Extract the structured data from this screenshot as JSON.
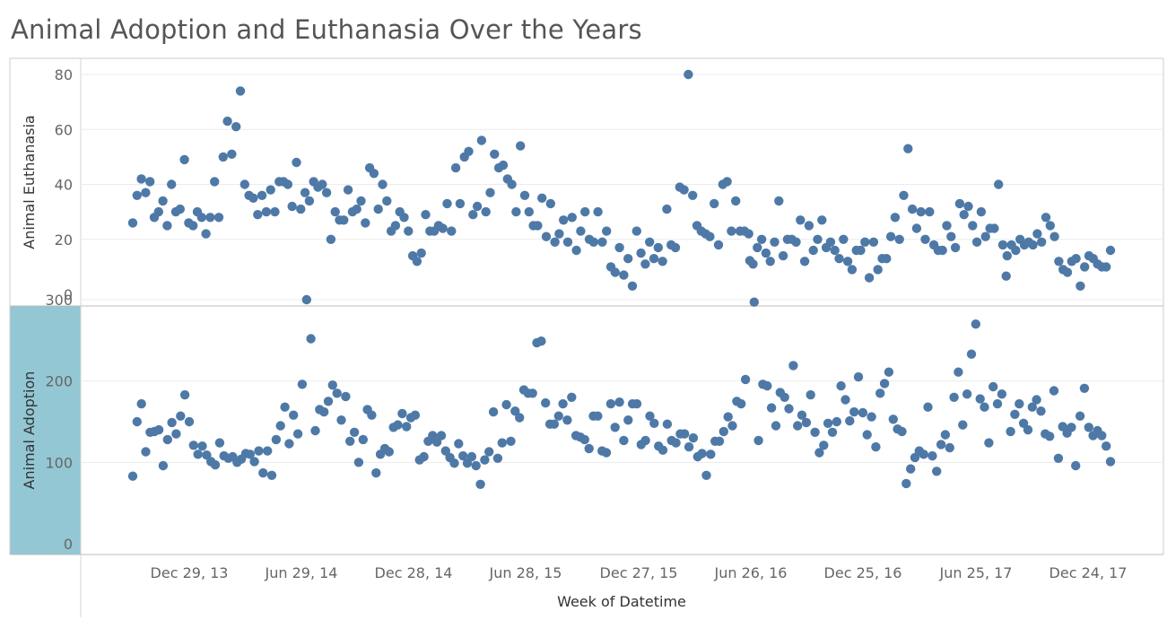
{
  "title": "Animal Adoption and Euthanasia Over the Years",
  "colors": {
    "mark": "#4e79a7",
    "highlight_band": "#93c7d4",
    "grid": "#ececec",
    "border": "#cccccc"
  },
  "chart_data": {
    "type": "scatter",
    "title": "Animal Adoption and Euthanasia Over the Years",
    "xlabel": "Week of Datetime",
    "x_ticks": [
      "Dec 29, 13",
      "Jun 29, 14",
      "Dec 28, 14",
      "Jun 28, 15",
      "Dec 27, 15",
      "Jun 26, 16",
      "Dec 25, 16",
      "Jun 25, 17",
      "Dec 24, 17"
    ],
    "x_range": [
      "Jul 28, 2013",
      "Apr 2, 2018"
    ],
    "panels": [
      {
        "name": "Animal Euthanasia",
        "ylabel": "Animal Euthanasia",
        "ylim": [
          0,
          80
        ],
        "yticks": [
          "0",
          "20",
          "40",
          "60",
          "80"
        ],
        "values": [
          26,
          36,
          42,
          37,
          41,
          28,
          30,
          34,
          25,
          40,
          30,
          31,
          49,
          26,
          25,
          30,
          28,
          22,
          28,
          41,
          28,
          50,
          63,
          51,
          61,
          74,
          40,
          36,
          35,
          29,
          36,
          30,
          38,
          30,
          41,
          41,
          40,
          32,
          48,
          31,
          37,
          34,
          41,
          39,
          40,
          37,
          20,
          30,
          27,
          27,
          38,
          30,
          31,
          34,
          26,
          46,
          44,
          31,
          40,
          34,
          23,
          25,
          30,
          28,
          23,
          14,
          12,
          15,
          29,
          23,
          23,
          25,
          24,
          33,
          23,
          46,
          33,
          50,
          52,
          29,
          32,
          56,
          30,
          37,
          51,
          46,
          47,
          42,
          40,
          30,
          54,
          36,
          30,
          25,
          25,
          35,
          21,
          33,
          19,
          22,
          27,
          19,
          28,
          16,
          23,
          30,
          20,
          19,
          30,
          19,
          23,
          10,
          8,
          17,
          7,
          13,
          3,
          23,
          15,
          11,
          19,
          13,
          17,
          12,
          31,
          18,
          17,
          39,
          38,
          80,
          36,
          25,
          23,
          22,
          21,
          33,
          18,
          40,
          41,
          23,
          34,
          23,
          23,
          22,
          11,
          17,
          20,
          15,
          12,
          19,
          34,
          14,
          20,
          20,
          19,
          27,
          12,
          25,
          16,
          20,
          27,
          17,
          19,
          16,
          13,
          20,
          12,
          9,
          16,
          16,
          19,
          6,
          19,
          9,
          13,
          13,
          21,
          28,
          20,
          36,
          53,
          31,
          24,
          30,
          20,
          30,
          18,
          16,
          16,
          25,
          21,
          17,
          33,
          29,
          32,
          25,
          19,
          30,
          21,
          24,
          24,
          40,
          18,
          14,
          18,
          16,
          20,
          18,
          19,
          18,
          22,
          19,
          28,
          25,
          21,
          12,
          9,
          8,
          12,
          13,
          3,
          10,
          14,
          13,
          11,
          10,
          10,
          16
        ]
      },
      {
        "name": "Animal Adoption",
        "ylabel": "Animal Adoption",
        "ylim": [
          0,
          370
        ],
        "yticks": [
          "0",
          "100",
          "200",
          "300"
        ],
        "values": [
          83,
          150,
          172,
          113,
          137,
          138,
          140,
          96,
          128,
          149,
          135,
          157,
          183,
          150,
          121,
          110,
          120,
          109,
          101,
          97,
          124,
          108,
          105,
          107,
          100,
          104,
          111,
          110,
          101,
          114,
          87,
          114,
          84,
          128,
          145,
          168,
          123,
          158,
          135,
          196,
          300,
          252,
          139,
          165,
          162,
          175,
          195,
          185,
          152,
          181,
          126,
          137,
          100,
          128,
          165,
          158,
          87,
          110,
          117,
          113,
          143,
          146,
          160,
          144,
          155,
          158,
          103,
          107,
          126,
          133,
          125,
          133,
          114,
          106,
          99,
          123,
          108,
          99,
          107,
          96,
          73,
          103,
          113,
          162,
          105,
          124,
          171,
          126,
          163,
          155,
          189,
          185,
          185,
          247,
          249,
          173,
          147,
          147,
          157,
          172,
          152,
          180,
          133,
          131,
          128,
          117,
          157,
          157,
          114,
          112,
          172,
          143,
          174,
          127,
          152,
          172,
          172,
          122,
          127,
          157,
          148,
          120,
          115,
          147,
          127,
          124,
          135,
          135,
          119,
          130,
          107,
          111,
          84,
          110,
          126,
          126,
          138,
          156,
          145,
          175,
          172,
          202,
          348,
          297,
          127,
          196,
          194,
          167,
          145,
          186,
          180,
          166,
          219,
          145,
          158,
          149,
          183,
          137,
          112,
          121,
          148,
          137,
          150,
          194,
          177,
          151,
          162,
          205,
          161,
          134,
          156,
          119,
          185,
          197,
          211,
          153,
          141,
          138,
          74,
          92,
          106,
          114,
          110,
          168,
          108,
          89,
          122,
          134,
          118,
          180,
          211,
          146,
          184,
          233,
          270,
          178,
          168,
          124,
          193,
          172,
          184,
          329,
          138,
          159,
          172,
          148,
          140,
          168,
          177,
          163,
          135,
          132,
          188,
          105,
          144,
          136,
          143,
          96,
          157,
          191,
          143,
          133,
          139,
          133,
          120,
          101
        ]
      }
    ]
  }
}
